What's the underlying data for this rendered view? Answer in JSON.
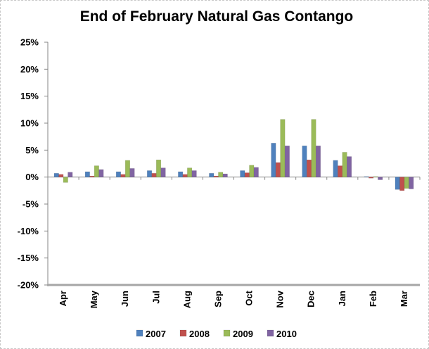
{
  "chart_data": {
    "type": "bar",
    "title": "End of February Natural Gas Contango",
    "xlabel": "",
    "ylabel": "",
    "categories": [
      "Apr",
      "May",
      "Jun",
      "Jul",
      "Aug",
      "Sep",
      "Oct",
      "Nov",
      "Dec",
      "Jan",
      "Feb",
      "Mar"
    ],
    "y_ticks": [
      "25%",
      "20%",
      "15%",
      "10%",
      "5%",
      "0%",
      "-5%",
      "-10%",
      "-15%",
      "-20%"
    ],
    "ylim": [
      -20,
      25
    ],
    "y_unit": "%",
    "grid": false,
    "legend_position": "bottom",
    "series": [
      {
        "name": "2007",
        "color": "#4f81bd",
        "values": [
          0.7,
          1.0,
          1.0,
          1.2,
          1.0,
          0.7,
          1.2,
          6.3,
          5.8,
          3.1,
          0.1,
          -2.3
        ]
      },
      {
        "name": "2008",
        "color": "#c0504d",
        "values": [
          0.5,
          0.2,
          0.5,
          0.7,
          0.5,
          0.2,
          0.8,
          2.7,
          3.2,
          2.1,
          -0.2,
          -2.5
        ]
      },
      {
        "name": "2009",
        "color": "#9bbb59",
        "values": [
          -1.0,
          2.1,
          3.1,
          3.2,
          1.7,
          0.9,
          2.2,
          10.7,
          10.7,
          4.6,
          0.1,
          -2.1
        ]
      },
      {
        "name": "2010",
        "color": "#8064a2",
        "values": [
          0.9,
          1.4,
          1.6,
          1.7,
          1.2,
          0.6,
          1.8,
          5.8,
          5.8,
          3.8,
          -0.5,
          -2.2
        ]
      }
    ]
  }
}
